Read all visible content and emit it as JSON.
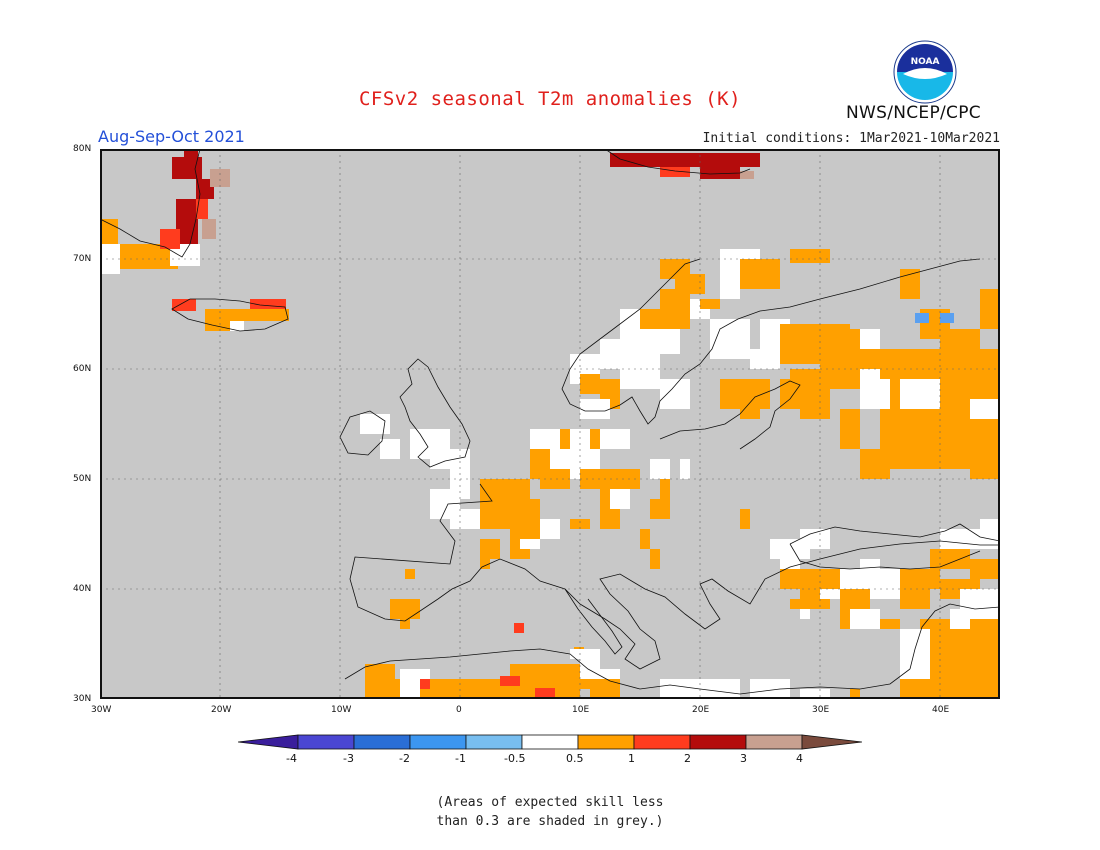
{
  "header": {
    "title": "CFSv2 seasonal T2m anomalies (K)",
    "season": "Aug-Sep-Oct 2021",
    "initial_conditions": "Initial conditions: 1Mar2021-10Mar2021",
    "agency": "NWS/NCEP/CPC",
    "logo_text": "NOAA"
  },
  "axes": {
    "lat_labels": [
      "80N",
      "70N",
      "60N",
      "50N",
      "40N",
      "30N"
    ],
    "lon_labels": [
      "30W",
      "20W",
      "10W",
      "0",
      "10E",
      "20E",
      "30E",
      "40E"
    ]
  },
  "colors": {
    "grey_low_skill": "#c8c8c8",
    "land_white": "#ffffff",
    "orange": "#ffa000",
    "red_orange": "#ff3c1e",
    "dark_red": "#b40c0c",
    "brown_pink": "#c8a090",
    "light_blue": "#5aa0f0"
  },
  "colorbar": {
    "bins": [
      {
        "color": "#3a1e9c"
      },
      {
        "color": "#4a46d2"
      },
      {
        "color": "#2a6ed6"
      },
      {
        "color": "#3c96f0"
      },
      {
        "color": "#78bef0"
      },
      {
        "color": "#ffffff"
      },
      {
        "color": "#ffa000"
      },
      {
        "color": "#ff3c1e"
      },
      {
        "color": "#b40c0c"
      },
      {
        "color": "#c8a090"
      },
      {
        "color": "#7a4a3c"
      }
    ],
    "labels": [
      "-4",
      "-3",
      "-2",
      "-1",
      "-0.5",
      "0.5",
      "1",
      "2",
      "3",
      "4"
    ]
  },
  "note": {
    "line1": "(Areas of expected skill less",
    "line2": "than 0.3 are shaded in grey.)"
  }
}
